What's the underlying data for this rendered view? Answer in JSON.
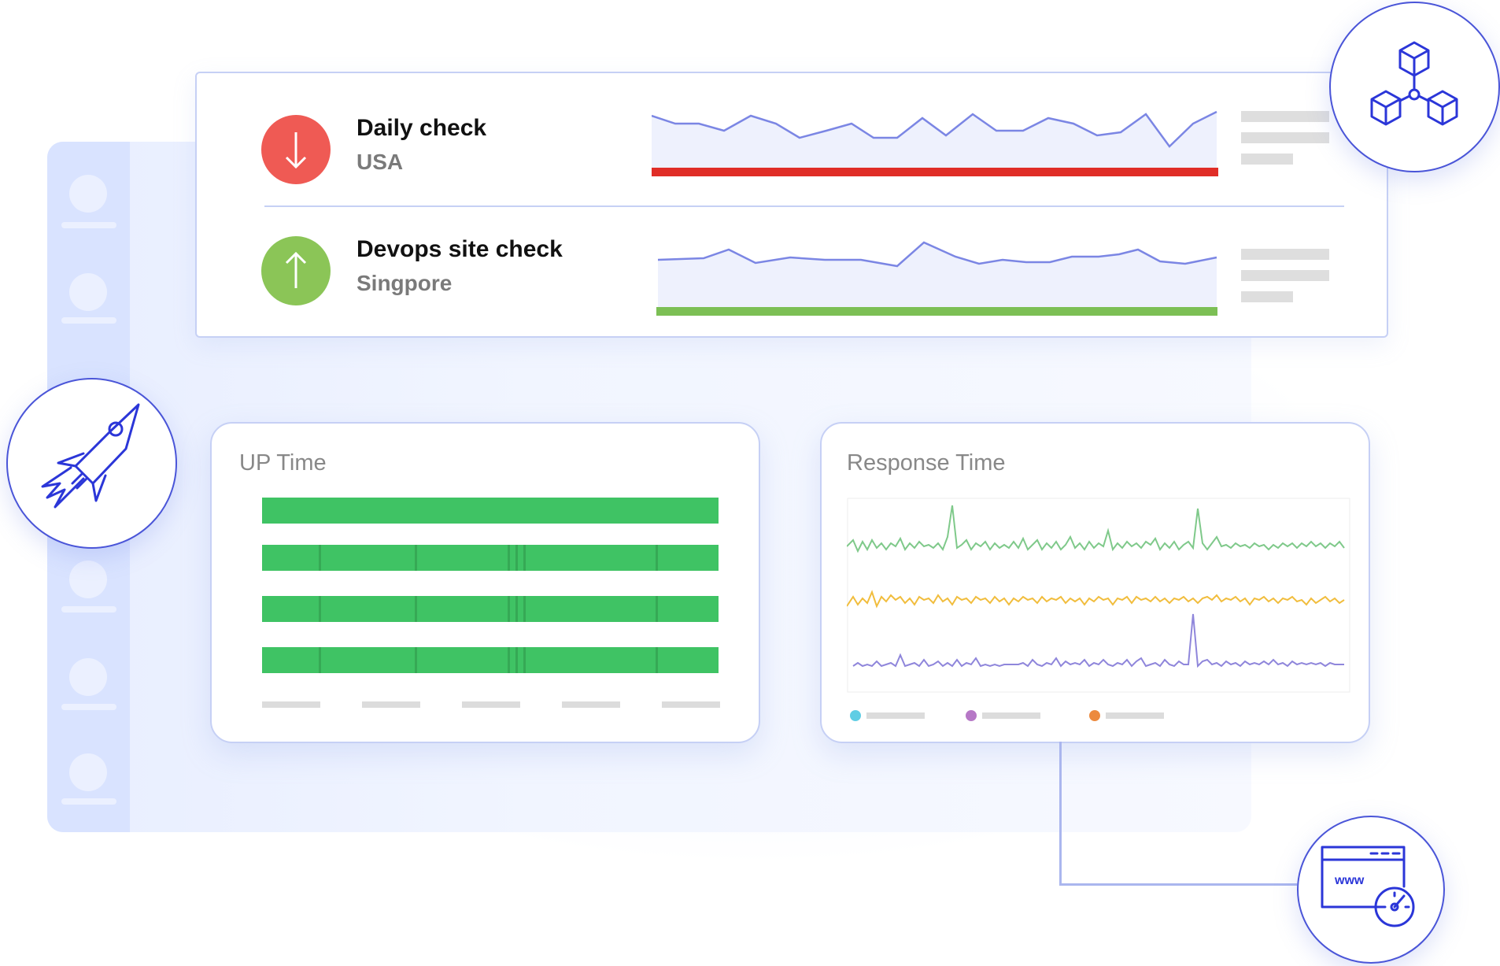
{
  "checks": [
    {
      "name": "Daily check",
      "location": "USA",
      "status": "down",
      "status_color": "#ef5a54",
      "bar_color": "#e02d27"
    },
    {
      "name": "Devops site check",
      "location": "Singpore",
      "status": "up",
      "status_color": "#8bc557",
      "bar_color": "#7cbf55"
    }
  ],
  "uptime": {
    "title": "UP Time",
    "bar_color": "#3fc364",
    "rows": 4
  },
  "response": {
    "title": "Response Time",
    "series_colors": [
      "#7fc98a",
      "#f1bd3d",
      "#8f86db"
    ],
    "legend_colors": [
      "#5fcde4",
      "#b678c6",
      "#ec8a3e"
    ]
  },
  "icons": [
    "network-cubes-icon",
    "rocket-icon",
    "website-speed-icon",
    "arrow-down-icon",
    "arrow-up-icon"
  ]
}
